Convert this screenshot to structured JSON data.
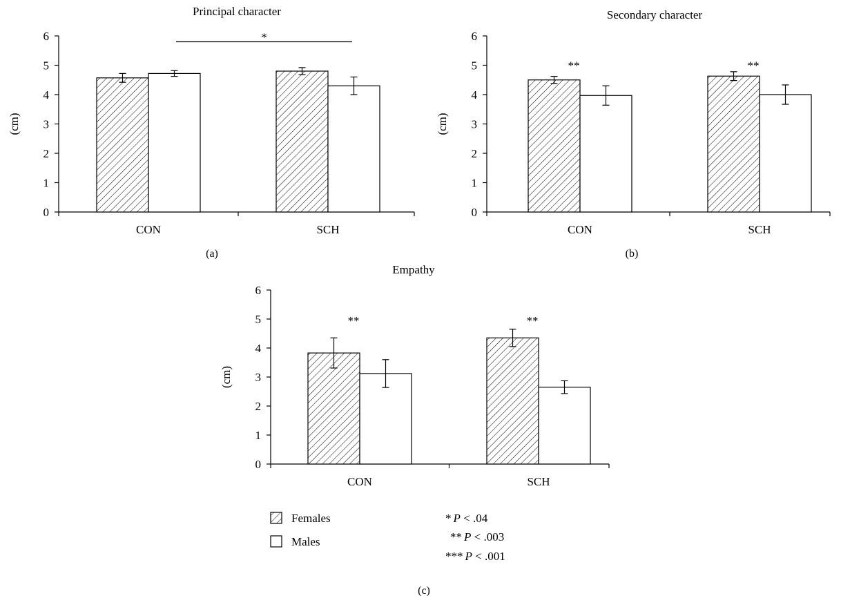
{
  "chart_data": [
    {
      "type": "bar",
      "panel_label": "(a)",
      "title": "Principal character",
      "ylabel": "(cm)",
      "ylim": [
        0,
        6
      ],
      "yticks": [
        "0",
        "1",
        "2",
        "3",
        "4",
        "5",
        "6"
      ],
      "categories": [
        "CON",
        "SCH"
      ],
      "series": [
        {
          "name": "Females",
          "values": [
            4.57,
            4.8
          ],
          "errors": [
            0.15,
            0.12
          ]
        },
        {
          "name": "Males",
          "values": [
            4.72,
            4.3
          ],
          "errors": [
            0.1,
            0.3
          ]
        }
      ],
      "annotations": [
        {
          "text": "*",
          "type": "bracket",
          "from": "CON-Females",
          "to": "SCH-Males",
          "y": 5.8
        }
      ]
    },
    {
      "type": "bar",
      "panel_label": "(b)",
      "title": "Secondary character",
      "ylabel": "(cm)",
      "ylim": [
        0,
        6
      ],
      "yticks": [
        "0",
        "1",
        "2",
        "3",
        "4",
        "5",
        "6"
      ],
      "categories": [
        "CON",
        "SCH"
      ],
      "series": [
        {
          "name": "Females",
          "values": [
            4.5,
            4.63
          ],
          "errors": [
            0.12,
            0.15
          ]
        },
        {
          "name": "Males",
          "values": [
            3.97,
            4.0
          ],
          "errors": [
            0.33,
            0.33
          ]
        }
      ],
      "annotations": [
        {
          "text": "**",
          "category": "CON",
          "y": 5.0
        },
        {
          "text": "**",
          "category": "SCH",
          "y": 5.0
        }
      ]
    },
    {
      "type": "bar",
      "panel_label": "(c)",
      "title": "Empathy",
      "ylabel": "(cm)",
      "ylim": [
        0,
        6
      ],
      "yticks": [
        "0",
        "1",
        "2",
        "3",
        "4",
        "5",
        "6"
      ],
      "categories": [
        "CON",
        "SCH"
      ],
      "series": [
        {
          "name": "Females",
          "values": [
            3.83,
            4.35
          ],
          "errors": [
            0.52,
            0.3
          ]
        },
        {
          "name": "Males",
          "values": [
            3.12,
            2.65
          ],
          "errors": [
            0.48,
            0.22
          ]
        }
      ],
      "annotations": [
        {
          "text": "**",
          "category": "CON",
          "y": 4.95
        },
        {
          "text": "**",
          "category": "SCH",
          "y": 4.95
        }
      ]
    }
  ],
  "legend": {
    "items": [
      {
        "name": "Females",
        "pattern": "hatched"
      },
      {
        "name": "Males",
        "pattern": "open"
      }
    ],
    "significance": [
      {
        "stars": "*",
        "p": "P",
        "rel": " < .04"
      },
      {
        "stars": "**",
        "p": "P",
        "rel": " < .003"
      },
      {
        "stars": "***",
        "p": "P",
        "rel": " < .001"
      }
    ]
  }
}
